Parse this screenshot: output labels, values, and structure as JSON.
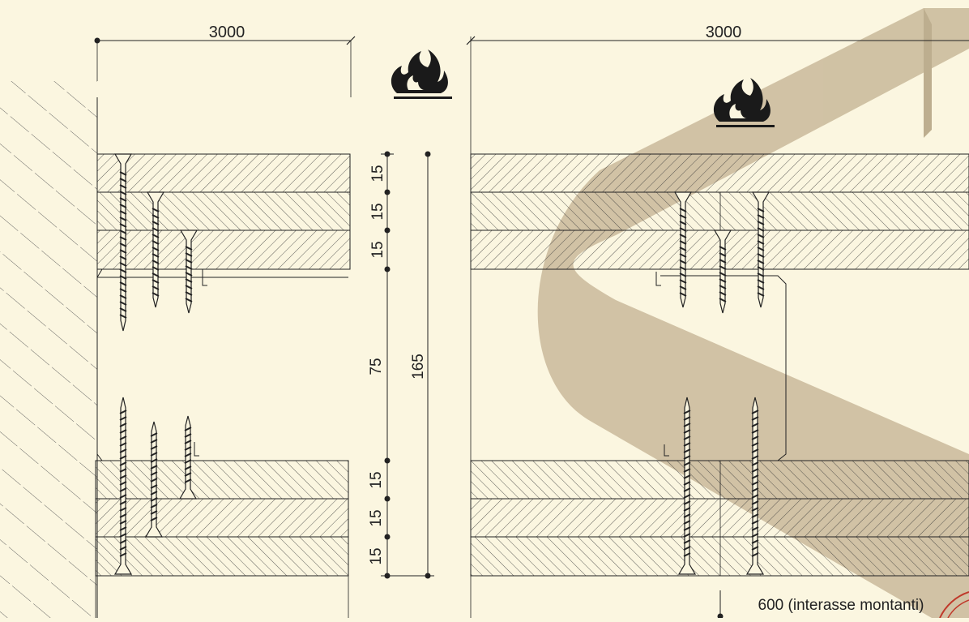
{
  "colors": {
    "background": "#fbf6e0",
    "line": "#222222",
    "hatch": "#3a3a3a",
    "logo_band": "#c9b99a",
    "stamp": "#c0392b"
  },
  "left_detail": {
    "width_label": "3000",
    "board_labels": [
      "15",
      "15",
      "15",
      "15",
      "15",
      "15"
    ],
    "cavity_label": "75",
    "total_label": "165",
    "icon": "fire-icon"
  },
  "right_detail": {
    "width_label": "3000",
    "spacing_label": "600 (interasse montanti)",
    "icon": "fire-icon"
  }
}
